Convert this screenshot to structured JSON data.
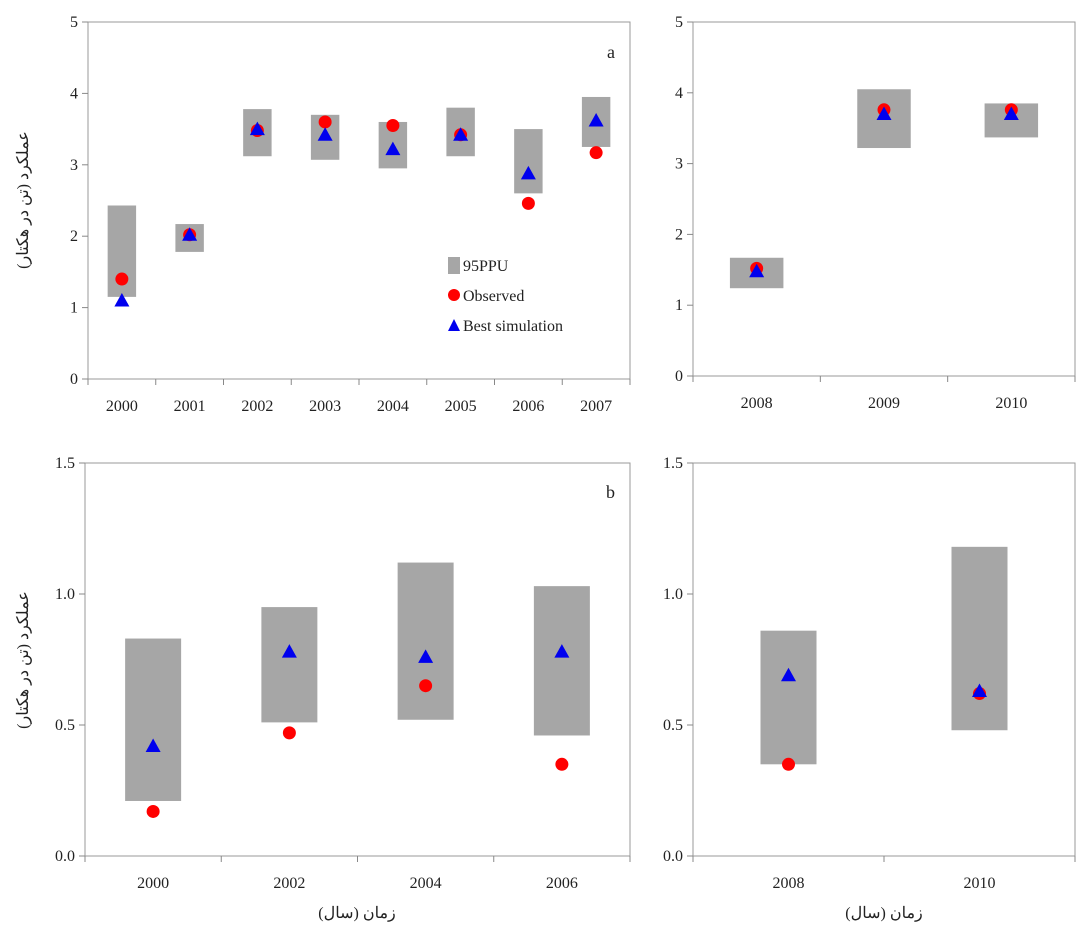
{
  "colors": {
    "band": "#a6a6a6",
    "observed": "#ff0000",
    "simulated": "#0000ee",
    "axis": "#888888",
    "frame": "#999999"
  },
  "legend": {
    "band_label": "95PPU",
    "observed_label": "Observed",
    "simulated_label": "Best simulation"
  },
  "chart_data": [
    {
      "type": "scatter",
      "panel_label": "a",
      "ylabel": "عملکرد (تن در هکتار)",
      "xlabel": "",
      "ylim": [
        0,
        5
      ],
      "yticks": [
        "0",
        "1",
        "2",
        "3",
        "4",
        "5"
      ],
      "categories": [
        "2000",
        "2001",
        "2002",
        "2003",
        "2004",
        "2005",
        "2006",
        "2007"
      ],
      "series": [
        {
          "name": "95PPU",
          "kind": "band",
          "lower": [
            1.15,
            1.78,
            3.12,
            3.07,
            2.95,
            3.12,
            2.6,
            3.25
          ],
          "upper": [
            2.43,
            2.17,
            3.78,
            3.7,
            3.6,
            3.8,
            3.5,
            3.95
          ]
        },
        {
          "name": "Observed",
          "kind": "point",
          "values": [
            1.4,
            2.02,
            3.48,
            3.6,
            3.55,
            3.42,
            2.46,
            3.17
          ]
        },
        {
          "name": "Best simulation",
          "kind": "triangle",
          "values": [
            1.1,
            2.02,
            3.5,
            3.42,
            3.22,
            3.42,
            2.88,
            3.62
          ]
        }
      ],
      "legend_position": "inside-right"
    },
    {
      "type": "scatter",
      "panel_label": "",
      "ylabel": "",
      "xlabel": "",
      "ylim": [
        0,
        5
      ],
      "yticks": [
        "0",
        "1",
        "2",
        "3",
        "4",
        "5"
      ],
      "categories": [
        "2008",
        "2009",
        "2010"
      ],
      "series": [
        {
          "name": "95PPU",
          "kind": "band",
          "lower": [
            1.24,
            3.22,
            3.37
          ],
          "upper": [
            1.67,
            4.05,
            3.85
          ]
        },
        {
          "name": "Observed",
          "kind": "point",
          "values": [
            1.52,
            3.76,
            3.76
          ]
        },
        {
          "name": "Best simulation",
          "kind": "triangle",
          "values": [
            1.48,
            3.7,
            3.7
          ]
        }
      ]
    },
    {
      "type": "scatter",
      "panel_label": "b",
      "ylabel": "عملکرد (تن در هکتار)",
      "xlabel": "زمان (سال)",
      "ylim": [
        0,
        1.5
      ],
      "yticks": [
        "0.0",
        "0.5",
        "1.0",
        "1.5"
      ],
      "categories": [
        "2000",
        "2002",
        "2004",
        "2006"
      ],
      "series": [
        {
          "name": "95PPU",
          "kind": "band",
          "lower": [
            0.21,
            0.51,
            0.52,
            0.46
          ],
          "upper": [
            0.83,
            0.95,
            1.12,
            1.03
          ]
        },
        {
          "name": "Observed",
          "kind": "point",
          "values": [
            0.17,
            0.47,
            0.65,
            0.35
          ]
        },
        {
          "name": "Best simulation",
          "kind": "triangle",
          "values": [
            0.42,
            0.78,
            0.76,
            0.78
          ]
        }
      ]
    },
    {
      "type": "scatter",
      "panel_label": "",
      "ylabel": "",
      "xlabel": "زمان (سال)",
      "ylim": [
        0,
        1.5
      ],
      "yticks": [
        "0.0",
        "0.5",
        "1.0",
        "1.5"
      ],
      "categories": [
        "2008",
        "2010"
      ],
      "series": [
        {
          "name": "95PPU",
          "kind": "band",
          "lower": [
            0.35,
            0.48
          ],
          "upper": [
            0.86,
            1.18
          ]
        },
        {
          "name": "Observed",
          "kind": "point",
          "values": [
            0.35,
            0.62
          ]
        },
        {
          "name": "Best simulation",
          "kind": "triangle",
          "values": [
            0.69,
            0.63
          ]
        }
      ]
    }
  ]
}
